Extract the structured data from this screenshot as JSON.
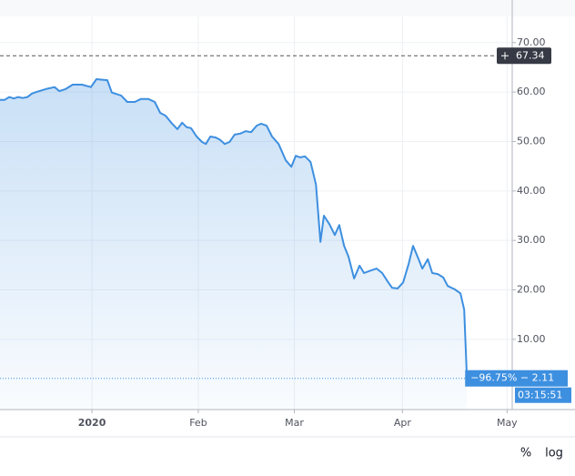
{
  "chart_data": {
    "type": "area",
    "x": [
      -26.8,
      -25.5,
      -24.1,
      -22.8,
      -21.5,
      -20.2,
      -18.8,
      -17.5,
      -16.2,
      -13.5,
      -10.9,
      -9.5,
      -7.7,
      -5.6,
      -2.9,
      -0.3,
      1.3,
      4.5,
      5.8,
      8.5,
      10.3,
      12.5,
      14.3,
      16.4,
      18.3,
      19.9,
      21.5,
      23.1,
      24.9,
      26.3,
      27.6,
      28.9,
      30.5,
      32.1,
      33.2,
      34.5,
      36.1,
      37.4,
      38.7,
      40.1,
      41.6,
      43.2,
      44.8,
      46.4,
      48,
      49.3,
      50.9,
      52.5,
      54.4,
      56.5,
      58.1,
      59.4,
      60.7,
      62.1,
      63.7,
      65.3,
      66.6,
      67.6,
      69.2,
      70.8,
      72.1,
      73.5,
      74.8,
      76.4,
      78,
      79.3,
      81.2,
      83,
      84.6,
      86.2,
      87.5,
      89.1,
      90.7,
      92.3,
      93.6,
      95.2,
      96.3,
      97.9,
      99.2,
      100.8,
      102.4,
      103.7,
      105.8,
      107.4,
      108.5,
      109.3
    ],
    "series": [
      {
        "color": "#3d8fe0",
        "values": [
          58.4,
          58.4,
          59,
          58.7,
          59,
          58.8,
          59,
          59.7,
          60,
          60.6,
          61,
          60.2,
          60.6,
          61.5,
          61.5,
          61,
          62.6,
          62.4,
          59.9,
          59.3,
          58,
          58,
          58.6,
          58.6,
          58,
          55.8,
          55.2,
          53.8,
          52.5,
          53.8,
          52.9,
          52.7,
          51,
          49.9,
          49.5,
          51,
          50.8,
          50.3,
          49.5,
          49.9,
          51.4,
          51.6,
          52.1,
          51.9,
          53.2,
          53.6,
          53.2,
          51,
          49.5,
          46.2,
          44.9,
          47.1,
          46.8,
          47,
          45.9,
          41.3,
          29.7,
          35,
          33.3,
          31.1,
          33.1,
          28.9,
          26.7,
          22.3,
          24.9,
          23.4,
          23.9,
          24.3,
          23.4,
          21.7,
          20.4,
          20.3,
          21.5,
          25.2,
          28.9,
          26.2,
          24.3,
          26.2,
          23.4,
          23.2,
          22.5,
          20.8,
          20.1,
          19.3,
          16,
          2.11
        ]
      }
    ],
    "xlim": [
      -26.8,
      122.5
    ],
    "xticks": [
      {
        "value": 0,
        "label": "2020"
      },
      {
        "value": 31,
        "label": "Feb"
      },
      {
        "value": 59,
        "label": "Mar"
      },
      {
        "value": 90.5,
        "label": "Apr"
      },
      {
        "value": 121,
        "label": "May"
      }
    ],
    "ylim": [
      -4.2,
      75.3
    ],
    "yticks": [
      {
        "value": 10,
        "label": "10.00"
      },
      {
        "value": 20,
        "label": "20.00"
      },
      {
        "value": 30,
        "label": "30.00"
      },
      {
        "value": 40,
        "label": "40.00"
      },
      {
        "value": 50,
        "label": "50.00"
      },
      {
        "value": 60,
        "label": "60.00"
      },
      {
        "value": 70,
        "label": "70.00"
      }
    ],
    "grid": true,
    "high_line": 67.34,
    "last_price_label": "−96.75% − 2.11",
    "countdown": "03:15:51",
    "toolbar": [
      "%",
      "log"
    ]
  }
}
